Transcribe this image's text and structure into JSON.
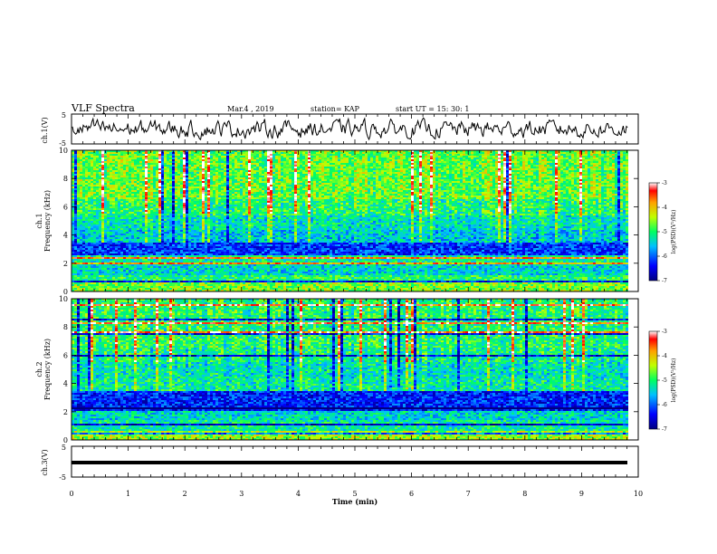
{
  "header": {
    "title": "VLF Spectra",
    "date": "Mar.4 , 2019",
    "station": "station= KAP",
    "start": "start  UT =   15: 30: 1"
  },
  "colorbar": {
    "label": "log(PSD)(V²/Hz)",
    "ticks": [
      "-3",
      "-4",
      "-5",
      "-6",
      "-7"
    ]
  },
  "chart_data": [
    {
      "type": "line",
      "name": "ch.1 waveform",
      "ylabel": "ch.1(V)",
      "ylim": [
        -5,
        5
      ],
      "yticks": [
        "5",
        "-5"
      ],
      "xlim": [
        0,
        9.83
      ],
      "description_values": "noisy waveform oscillating roughly between -3.5 V and +3.5 V"
    },
    {
      "type": "heatmap",
      "name": "ch.1 spectrogram",
      "ylabel": "ch.1\nFrequency (kHz)",
      "ylim": [
        0,
        10
      ],
      "yticks": [
        "0",
        "2",
        "4",
        "6",
        "8",
        "10"
      ],
      "xlim": [
        0,
        9.83
      ],
      "zlim": [
        -7,
        -3
      ],
      "bands": [
        {
          "f_lo": 0.0,
          "f_hi": 0.6,
          "level": -4.6
        },
        {
          "f_lo": 0.6,
          "f_hi": 1.2,
          "level": -5.0
        },
        {
          "f_lo": 1.2,
          "f_hi": 2.0,
          "level": -5.4
        },
        {
          "f_lo": 2.0,
          "f_hi": 2.6,
          "level": -5.2
        },
        {
          "f_lo": 2.6,
          "f_hi": 3.5,
          "level": -6.2
        },
        {
          "f_lo": 3.5,
          "f_hi": 4.4,
          "level": -5.5
        },
        {
          "f_lo": 4.4,
          "f_hi": 5.4,
          "level": -5.3
        },
        {
          "f_lo": 5.4,
          "f_hi": 6.5,
          "level": -5.0
        },
        {
          "f_lo": 6.5,
          "f_hi": 10.0,
          "level": -4.7
        }
      ]
    },
    {
      "type": "heatmap",
      "name": "ch.2 spectrogram",
      "ylabel": "ch.2\nFrequency (kHz)",
      "ylim": [
        0,
        10
      ],
      "yticks": [
        "0",
        "2",
        "4",
        "6",
        "8",
        "10"
      ],
      "xlim": [
        0,
        9.83
      ],
      "zlim": [
        -7,
        -3
      ],
      "bands": [
        {
          "f_lo": 0.0,
          "f_hi": 0.6,
          "level": -4.5
        },
        {
          "f_lo": 0.6,
          "f_hi": 1.4,
          "level": -5.2
        },
        {
          "f_lo": 1.4,
          "f_hi": 2.0,
          "level": -5.4
        },
        {
          "f_lo": 2.0,
          "f_hi": 3.4,
          "level": -6.3
        },
        {
          "f_lo": 3.4,
          "f_hi": 4.3,
          "level": -5.2
        },
        {
          "f_lo": 4.3,
          "f_hi": 5.5,
          "level": -5.3
        },
        {
          "f_lo": 5.5,
          "f_hi": 6.5,
          "level": -5.1
        },
        {
          "f_lo": 6.5,
          "f_hi": 10.0,
          "level": -5.0
        }
      ]
    },
    {
      "type": "line",
      "name": "ch.3 waveform",
      "ylabel": "ch.3(V)",
      "ylim": [
        -5,
        5
      ],
      "yticks": [
        "5",
        "-5"
      ],
      "xlim": [
        0,
        9.83
      ],
      "values_constant": 0
    }
  ],
  "xaxis": {
    "label": "Time (min)",
    "range": [
      0,
      10
    ],
    "ticks": [
      "0",
      "1",
      "2",
      "3",
      "4",
      "5",
      "6",
      "7",
      "8",
      "9",
      "10"
    ]
  }
}
